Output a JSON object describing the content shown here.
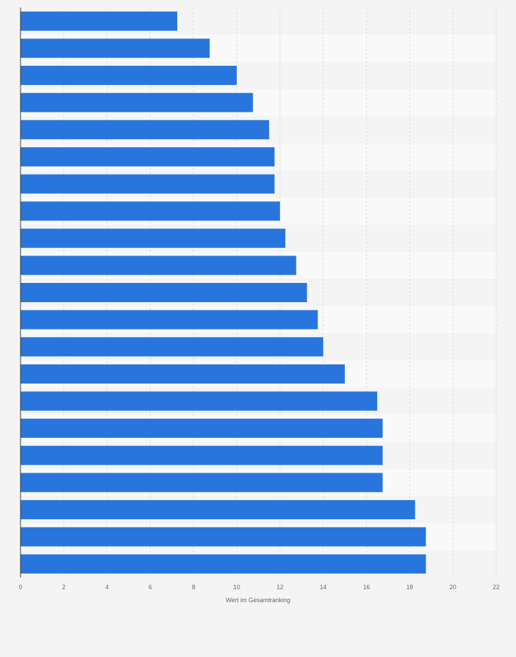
{
  "chart_data": {
    "type": "bar",
    "orientation": "horizontal",
    "xlabel": "Wert im Gesamtranking",
    "ylabel": "",
    "xlim": [
      0,
      22
    ],
    "xticks": [
      "0",
      "2",
      "4",
      "6",
      "8",
      "10",
      "12",
      "14",
      "16",
      "18",
      "20",
      "22"
    ],
    "grid": true,
    "bar_color": "#2876dd",
    "values": [
      7.25,
      8.75,
      10,
      10.75,
      11.5,
      11.75,
      11.75,
      12,
      12.25,
      12.75,
      13.25,
      13.75,
      14,
      15,
      16.5,
      16.75,
      16.75,
      16.75,
      18.25,
      18.75,
      18.75
    ]
  }
}
